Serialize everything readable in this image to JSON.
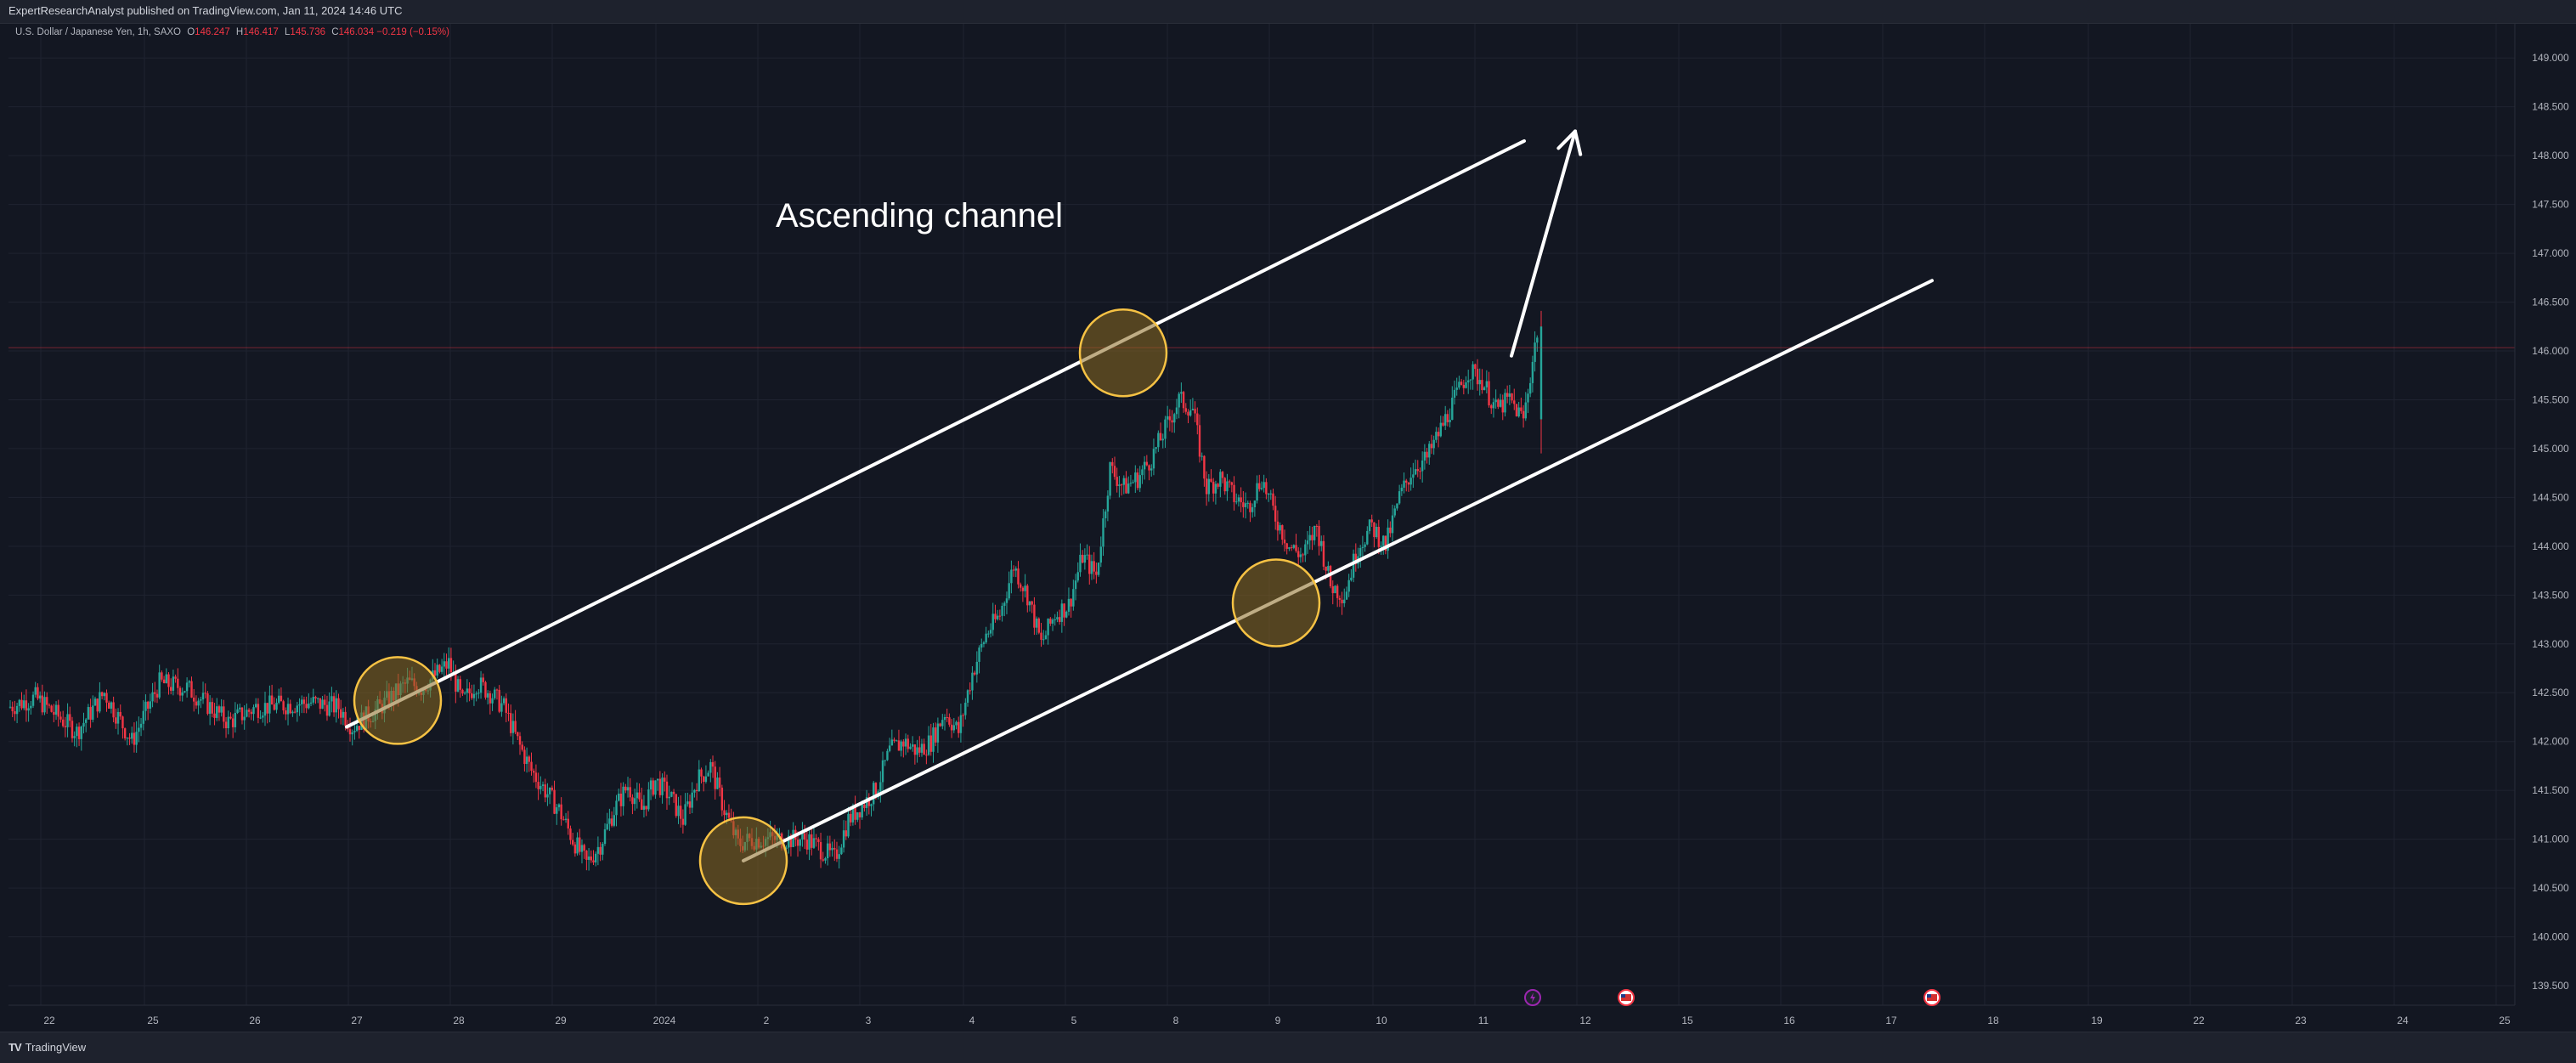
{
  "header": {
    "published": "ExpertResearchAnalyst published on TradingView.com, Jan 11, 2024 14:46 UTC"
  },
  "legend": {
    "symbol": "U.S. Dollar / Japanese Yen, 1h, SAXO",
    "open_label": "O",
    "open": "146.247",
    "high_label": "H",
    "high": "146.417",
    "low_label": "L",
    "low": "145.736",
    "close_label": "C",
    "close": "146.034",
    "change": "−0.219 (−0.15%)"
  },
  "footer": {
    "brand": "TradingView",
    "logo_text": "TV"
  },
  "colors": {
    "background": "#131722",
    "up": "#26a69a",
    "down": "#f23645",
    "grid": "#1f2330",
    "axis_text": "#b2b5be",
    "circle_stroke": "#f6c244",
    "circle_fill": "#8a6a20",
    "line": "#ffffff",
    "event_purple": "#9c27b0",
    "event_red": "#f23645"
  },
  "chart_data": {
    "type": "candlestick",
    "title": "",
    "annotation": "Ascending channel",
    "ylim": [
      139.3,
      149.35
    ],
    "y_ticks": [
      "139.500",
      "140.000",
      "140.500",
      "141.000",
      "141.500",
      "142.000",
      "142.500",
      "143.000",
      "143.500",
      "144.000",
      "144.500",
      "145.000",
      "145.500",
      "146.000",
      "146.500",
      "147.000",
      "147.500",
      "148.000",
      "148.500",
      "149.000"
    ],
    "x_ticks": [
      "22",
      "25",
      "26",
      "27",
      "28",
      "29",
      "2024",
      "2",
      "3",
      "4",
      "5",
      "8",
      "9",
      "10",
      "11",
      "12",
      "15",
      "16",
      "17",
      "18",
      "19",
      "22",
      "23",
      "24",
      "25"
    ],
    "grid": true,
    "current_price": 146.034,
    "price_path": [
      [
        0,
        142.35
      ],
      [
        2,
        142.45
      ],
      [
        5,
        142.1
      ],
      [
        7,
        142.5
      ],
      [
        9,
        142.0
      ],
      [
        11,
        142.6
      ],
      [
        13,
        142.55
      ],
      [
        16,
        142.2
      ],
      [
        18,
        142.35
      ],
      [
        22,
        142.4
      ],
      [
        24,
        142.35
      ],
      [
        25,
        142.15
      ],
      [
        27,
        142.35
      ],
      [
        29,
        142.6
      ],
      [
        30,
        142.55
      ],
      [
        32,
        142.8
      ],
      [
        33,
        142.4
      ],
      [
        34,
        142.6
      ],
      [
        35,
        142.5
      ],
      [
        36,
        142.35
      ],
      [
        37,
        142.0
      ],
      [
        38,
        141.7
      ],
      [
        40,
        141.3
      ],
      [
        41,
        141.0
      ],
      [
        42,
        140.75
      ],
      [
        43,
        140.95
      ],
      [
        44,
        141.3
      ],
      [
        45,
        141.55
      ],
      [
        46,
        141.3
      ],
      [
        47,
        141.6
      ],
      [
        48,
        141.45
      ],
      [
        49,
        141.2
      ],
      [
        50,
        141.6
      ],
      [
        51,
        141.75
      ],
      [
        52,
        141.3
      ],
      [
        53,
        140.95
      ],
      [
        54,
        141.0
      ],
      [
        55,
        141.0
      ],
      [
        58,
        141.0
      ],
      [
        59,
        140.9
      ],
      [
        60,
        140.8
      ],
      [
        61,
        141.2
      ],
      [
        62,
        141.35
      ],
      [
        63,
        141.5
      ],
      [
        64,
        141.9
      ],
      [
        65,
        142.0
      ],
      [
        66,
        141.9
      ],
      [
        67,
        142.0
      ],
      [
        68,
        142.3
      ],
      [
        69,
        142.1
      ],
      [
        70,
        142.7
      ],
      [
        71,
        143.1
      ],
      [
        72,
        143.3
      ],
      [
        73,
        143.8
      ],
      [
        74,
        143.5
      ],
      [
        75,
        143.0
      ],
      [
        76,
        143.3
      ],
      [
        77,
        143.4
      ],
      [
        78,
        143.9
      ],
      [
        79,
        143.7
      ],
      [
        80,
        144.8
      ],
      [
        81,
        144.6
      ],
      [
        82,
        144.7
      ],
      [
        83,
        144.9
      ],
      [
        84,
        145.2
      ],
      [
        85,
        145.5
      ],
      [
        86,
        145.4
      ],
      [
        87,
        144.6
      ],
      [
        88,
        144.7
      ],
      [
        89,
        144.5
      ],
      [
        90,
        144.4
      ],
      [
        91,
        144.7
      ],
      [
        92,
        144.3
      ],
      [
        93,
        144.0
      ],
      [
        94,
        143.9
      ],
      [
        95,
        144.2
      ],
      [
        96,
        143.6
      ],
      [
        97,
        143.5
      ],
      [
        98,
        144.0
      ],
      [
        99,
        144.2
      ],
      [
        100,
        144.0
      ],
      [
        101,
        144.5
      ],
      [
        102,
        144.8
      ],
      [
        103,
        144.9
      ],
      [
        104,
        145.2
      ],
      [
        105,
        145.5
      ],
      [
        106,
        145.8
      ],
      [
        107,
        145.7
      ],
      [
        108,
        145.4
      ],
      [
        109,
        145.5
      ],
      [
        110,
        145.3
      ],
      [
        111,
        146.2
      ]
    ],
    "channel": {
      "upper": [
        [
          "27 Dec 00:00",
          142.15
        ],
        [
          "11 Jan 12:00",
          148.15
        ]
      ],
      "lower": [
        [
          "1 Jan 21:00",
          140.78
        ],
        [
          "17 Jan 12:00",
          146.72
        ]
      ]
    },
    "arrow": [
      [
        "11 Jan 09:00",
        145.95
      ],
      [
        "12 Jan 00:00",
        148.25
      ]
    ],
    "highlights": [
      [
        "27 Dec 12:00",
        142.42
      ],
      [
        "1 Jan 21:00",
        140.78
      ],
      [
        "5 Jan 14:00",
        145.98
      ],
      [
        "9 Jan 02:00",
        143.42
      ]
    ],
    "events": [
      {
        "x": "11 Jan 14:00",
        "kind": "purple-bolt"
      },
      {
        "x": "12 Jan 12:00",
        "kind": "us-flag"
      },
      {
        "x": "17 Jan 12:00",
        "kind": "us-flag"
      }
    ]
  }
}
